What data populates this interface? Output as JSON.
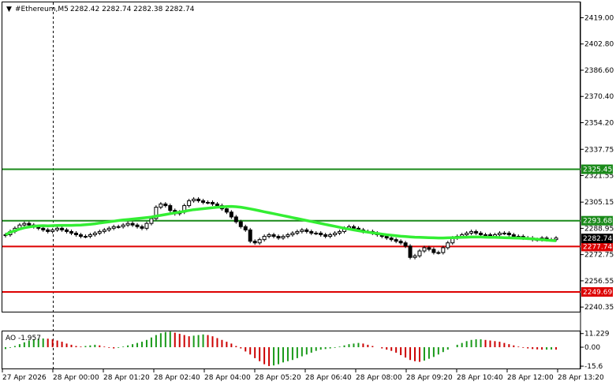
{
  "header": {
    "symbol": "#Ethereum,M5",
    "ohlc": "2282.42 2282.74 2282.38 2282.74"
  },
  "indicator": {
    "label": "AO -1.957"
  },
  "colors": {
    "candle": "#000000",
    "ma": "#33ee33",
    "green_line": "#1a8a1a",
    "red_line": "#dd0000",
    "ao_up": "#1a9a1a",
    "ao_down": "#cc0000",
    "price_tag": "#000000"
  },
  "chart_data": [
    {
      "type": "candlestick",
      "title": "#Ethereum,M5",
      "x_ticks": [
        "27 Apr 2026",
        "28 Apr 00:00",
        "28 Apr 01:20",
        "28 Apr 02:40",
        "28 Apr 04:00",
        "28 Apr 05:20",
        "28 Apr 06:40",
        "28 Apr 08:00",
        "28 Apr 09:20",
        "28 Apr 10:40",
        "28 Apr 12:00",
        "28 Apr 13:20"
      ],
      "y_ticks": [
        "2419.00",
        "2402.80",
        "2386.60",
        "2370.40",
        "2354.20",
        "2337.75",
        "2321.55",
        "2305.15",
        "2288.95",
        "2272.75",
        "2256.55",
        "2240.35"
      ],
      "ylim": [
        2237.5,
        2428.5
      ],
      "horizontal_lines": [
        {
          "value": 2325.45,
          "label": "2325.45",
          "color": "green"
        },
        {
          "value": 2293.68,
          "label": "2293.68",
          "color": "green"
        },
        {
          "value": 2277.74,
          "label": "2277.74",
          "color": "red"
        },
        {
          "value": 2249.69,
          "label": "2249.69",
          "color": "red"
        }
      ],
      "current_price": {
        "value": 2282.74,
        "label": "2282.74"
      },
      "close_series": [
        2285,
        2287,
        2289,
        2291,
        2292,
        2291,
        2290,
        2289,
        2288,
        2287,
        2288,
        2289,
        2288,
        2287,
        2286,
        2285,
        2284,
        2284,
        2285,
        2286,
        2287,
        2288,
        2289,
        2290,
        2290,
        2291,
        2292,
        2291,
        2290,
        2289,
        2292,
        2295,
        2302,
        2304,
        2303,
        2300,
        2298,
        2299,
        2303,
        2306,
        2307,
        2306,
        2305,
        2305,
        2304,
        2303,
        2301,
        2299,
        2296,
        2293,
        2290,
        2288,
        2281,
        2280,
        2282,
        2284,
        2285,
        2284,
        2283,
        2284,
        2285,
        2286,
        2287,
        2288,
        2287,
        2286,
        2286,
        2285,
        2284,
        2285,
        2286,
        2287,
        2289,
        2290,
        2289,
        2288,
        2287,
        2287,
        2286,
        2285,
        2284,
        2283,
        2282,
        2281,
        2280,
        2278,
        2271,
        2272,
        2275,
        2277,
        2276,
        2274,
        2274,
        2277,
        2280,
        2283,
        2284,
        2285,
        2286,
        2287,
        2286,
        2285,
        2285,
        2284,
        2285,
        2286,
        2286,
        2285,
        2284,
        2284,
        2283,
        2283,
        2282,
        2282,
        2283,
        2282,
        2282,
        2283
      ],
      "ma_series": [
        2285,
        2286.5,
        2287.5,
        2288.5,
        2289.3,
        2289.8,
        2290.2,
        2290.5,
        2290.6,
        2290.5,
        2290.6,
        2290.7,
        2290.8,
        2290.8,
        2290.8,
        2290.9,
        2291,
        2291.2,
        2291.5,
        2291.8,
        2292.2,
        2292.6,
        2293,
        2293.4,
        2293.8,
        2294.1,
        2294.4,
        2294.7,
        2295,
        2295.3,
        2295.6,
        2295.9,
        2296.5,
        2297,
        2297.5,
        2298,
        2298.5,
        2299,
        2299.5,
        2300,
        2300.5,
        2300.8,
        2301.1,
        2301.4,
        2301.7,
        2302,
        2302.2,
        2302.4,
        2302.5,
        2302.3,
        2302,
        2301.5,
        2301,
        2300.4,
        2299.8,
        2299.2,
        2298.6,
        2298,
        2297.4,
        2296.8,
        2296.2,
        2295.6,
        2295,
        2294.4,
        2293.8,
        2293.2,
        2292.6,
        2292,
        2291.4,
        2290.8,
        2290.2,
        2289.6,
        2289,
        2288.5,
        2288,
        2287.5,
        2287,
        2286.6,
        2286.2,
        2285.8,
        2285.4,
        2285,
        2284.7,
        2284.4,
        2284.1,
        2283.9,
        2283.7,
        2283.5,
        2283.4,
        2283.3,
        2283.2,
        2283.1,
        2283,
        2283,
        2283.1,
        2283.2,
        2283.3,
        2283.4,
        2283.5,
        2283.6,
        2283.6,
        2283.6,
        2283.5,
        2283.4,
        2283.4,
        2283.3,
        2283.2,
        2283.1,
        2283,
        2282.9,
        2282.8,
        2282.6,
        2282.4,
        2282.2,
        2282,
        2281.7,
        2281.5,
        2281.3
      ]
    },
    {
      "type": "bar",
      "title": "AO -1.957",
      "y_ticks": [
        "11.229",
        "0.00",
        "-15.6"
      ],
      "ylim": [
        -17.5,
        13.0
      ],
      "values": [
        -1.5,
        -0.5,
        1.0,
        2.5,
        4.0,
        5.5,
        6.5,
        7.0,
        7.2,
        7.0,
        6.5,
        5.5,
        4.5,
        3.0,
        2.0,
        1.0,
        0.5,
        1.0,
        1.5,
        2.0,
        1.5,
        0.5,
        -0.5,
        -1.0,
        -0.5,
        0.5,
        1.5,
        2.5,
        3.5,
        4.5,
        6.0,
        8.0,
        10.0,
        11.5,
        12.5,
        12.8,
        12.0,
        11.0,
        10.0,
        9.0,
        9.5,
        10.0,
        10.5,
        10.0,
        9.0,
        7.5,
        6.0,
        4.5,
        3.0,
        1.0,
        -1.0,
        -3.5,
        -6.0,
        -9.0,
        -11.5,
        -14.0,
        -15.5,
        -15.0,
        -14.0,
        -12.5,
        -11.5,
        -10.5,
        -9.0,
        -7.5,
        -6.0,
        -4.5,
        -3.0,
        -2.0,
        -1.5,
        -1.0,
        -0.5,
        0.5,
        1.5,
        2.5,
        3.0,
        3.5,
        3.0,
        2.0,
        1.0,
        0.0,
        -1.0,
        -2.0,
        -3.0,
        -4.5,
        -6.5,
        -8.5,
        -10.5,
        -11.5,
        -12.0,
        -11.0,
        -9.5,
        -8.0,
        -6.0,
        -4.0,
        -2.0,
        0.0,
        2.0,
        3.5,
        5.0,
        6.0,
        6.5,
        6.5,
        6.0,
        5.5,
        5.0,
        4.5,
        3.5,
        2.5,
        1.5,
        0.5,
        -0.5,
        -1.0,
        -1.5,
        -1.8,
        -2.0,
        -2.0,
        -1.9,
        -1.957
      ]
    }
  ]
}
